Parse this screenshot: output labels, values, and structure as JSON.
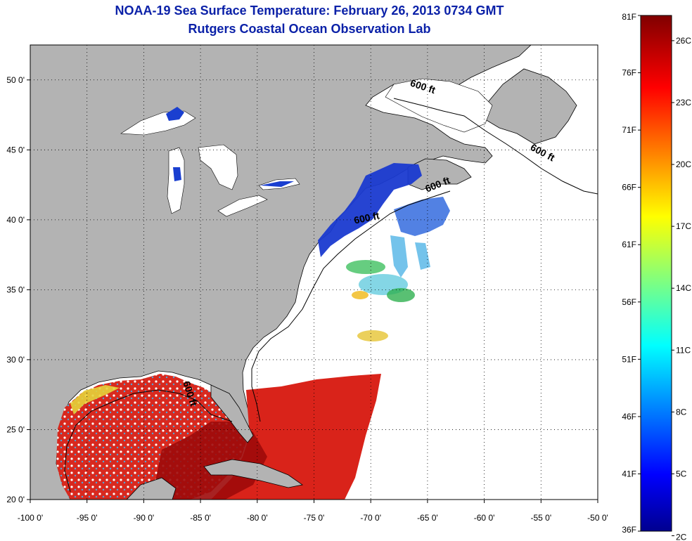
{
  "header": {
    "title": "NOAA-19 Sea Surface Temperature:  February 26, 2013 0734 GMT",
    "subtitle": "Rutgers Coastal Ocean Observation Lab"
  },
  "map": {
    "lon_range": [
      -100,
      -50
    ],
    "lat_range": [
      20,
      52.5
    ],
    "lon_ticks": [
      {
        "value": -100,
        "label": "-100 0'"
      },
      {
        "value": -95,
        "label": "-95 0'"
      },
      {
        "value": -90,
        "label": "-90 0'"
      },
      {
        "value": -85,
        "label": "-85 0'"
      },
      {
        "value": -80,
        "label": "-80 0'"
      },
      {
        "value": -75,
        "label": "-75 0'"
      },
      {
        "value": -70,
        "label": "-70 0'"
      },
      {
        "value": -65,
        "label": "-65 0'"
      },
      {
        "value": -60,
        "label": "-60 0'"
      },
      {
        "value": -55,
        "label": "-55 0'"
      },
      {
        "value": -50,
        "label": "-50 0'"
      }
    ],
    "lat_ticks": [
      {
        "value": 20,
        "label": "20 0'"
      },
      {
        "value": 25,
        "label": "25 0'"
      },
      {
        "value": 30,
        "label": "30 0'"
      },
      {
        "value": 35,
        "label": "35 0'"
      },
      {
        "value": 40,
        "label": "40 0'"
      },
      {
        "value": 45,
        "label": "45 0'"
      },
      {
        "value": 50,
        "label": "50 0'"
      }
    ],
    "contour_labels": [
      {
        "text": "600 ft",
        "lon": -65.5,
        "lat": 49.3,
        "angle": 18
      },
      {
        "text": "600 ft",
        "lon": -55.0,
        "lat": 44.6,
        "angle": 28
      },
      {
        "text": "600 ft",
        "lon": -64.0,
        "lat": 42.3,
        "angle": -22
      },
      {
        "text": "600 ft",
        "lon": -70.3,
        "lat": 39.9,
        "angle": -12
      },
      {
        "text": "600 ft",
        "lon": -86.2,
        "lat": 27.5,
        "angle": 72
      }
    ],
    "colors": {
      "land": "#b3b3b3",
      "ocean_no_data": "#ffffff",
      "grid": "#000000",
      "coast": "#000000",
      "cold_sst": "#1236c8",
      "warm_sst": "#d21c0a",
      "hot_sst": "#9e0808"
    }
  },
  "colorbar": {
    "min_f": 36,
    "max_f": 81,
    "f_ticks": [
      "81F",
      "76F",
      "71F",
      "66F",
      "61F",
      "56F",
      "51F",
      "46F",
      "41F",
      "36F"
    ],
    "c_ticks": [
      "26C",
      "23C",
      "20C",
      "17C",
      "14C",
      "11C",
      "8C",
      "5C",
      "2C"
    ],
    "c_values": [
      26,
      23,
      20,
      17,
      14,
      11,
      8,
      5,
      2
    ],
    "f_values": [
      81,
      76,
      71,
      66,
      61,
      56,
      51,
      46,
      41,
      36
    ],
    "colormap": "jet"
  }
}
